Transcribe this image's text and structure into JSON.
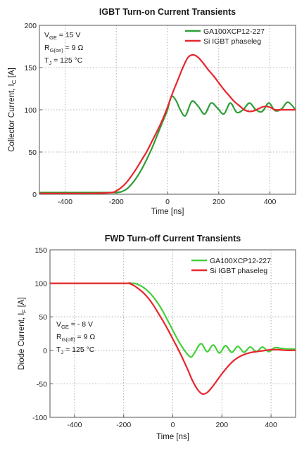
{
  "colors": {
    "green": "#2e9e36",
    "red": "#e8262d",
    "green_light": "#44d03a"
  },
  "chart_data": [
    {
      "type": "line",
      "title": "IGBT Turn-on Current Transients",
      "xlabel": "Time [ns]",
      "ylabel_main": "Collector Current, I",
      "ylabel_sub": "C",
      "ylabel_unit": " [A]",
      "xlim": [
        -500,
        500
      ],
      "ylim": [
        0,
        200
      ],
      "xticks": [
        -400,
        -200,
        0,
        200,
        400
      ],
      "yticks": [
        0,
        50,
        100,
        150,
        200
      ],
      "grid": true,
      "legend_position": "top-right",
      "annotation": [
        {
          "main": "V",
          "sub": "GE",
          "rest": " = 15 V"
        },
        {
          "main": "R",
          "sub": "G(on)",
          "rest": " = 9 Ω"
        },
        {
          "main": "T",
          "sub": "J",
          "rest": " = 125 °C"
        }
      ],
      "series": [
        {
          "name": "GA100XCP12-227",
          "color": "#2e9e36",
          "x": [
            -500,
            -300,
            -220,
            -200,
            -180,
            -160,
            -140,
            -120,
            -100,
            -80,
            -60,
            -40,
            -20,
            0,
            10,
            20,
            35,
            50,
            70,
            95,
            120,
            145,
            170,
            195,
            220,
            245,
            270,
            295,
            320,
            345,
            370,
            395,
            420,
            445,
            470,
            500
          ],
          "y": [
            2,
            2,
            2,
            2,
            3,
            6,
            12,
            20,
            30,
            42,
            55,
            70,
            85,
            100,
            112,
            116,
            110,
            100,
            93,
            110,
            104,
            95,
            108,
            102,
            95,
            108,
            97,
            100,
            108,
            100,
            98,
            108,
            99,
            101,
            109,
            100
          ]
        },
        {
          "name": "Si IGBT phaseleg",
          "color": "#e8262d",
          "x": [
            -500,
            -300,
            -220,
            -200,
            -180,
            -160,
            -140,
            -120,
            -100,
            -80,
            -60,
            -40,
            -20,
            0,
            20,
            40,
            60,
            80,
            100,
            120,
            140,
            160,
            180,
            200,
            220,
            240,
            260,
            280,
            300,
            320,
            340,
            360,
            380,
            400,
            420,
            450,
            500
          ],
          "y": [
            1,
            1,
            2,
            4,
            8,
            14,
            22,
            31,
            41,
            51,
            63,
            75,
            88,
            103,
            120,
            135,
            150,
            162,
            165,
            162,
            155,
            147,
            140,
            132,
            124,
            117,
            110,
            105,
            100,
            98,
            99,
            102,
            104,
            103,
            100,
            100,
            100
          ]
        }
      ]
    },
    {
      "type": "line",
      "title": "FWD Turn-off Current Transients",
      "xlabel": "Time [ns]",
      "ylabel_main": "Diode Current, I",
      "ylabel_sub": "F",
      "ylabel_unit": " [A]",
      "xlim": [
        -500,
        500
      ],
      "ylim": [
        -100,
        150
      ],
      "xticks": [
        -400,
        -200,
        0,
        200,
        400
      ],
      "yticks": [
        -100,
        -50,
        0,
        50,
        100,
        150
      ],
      "grid": true,
      "legend_position": "top-right",
      "annotation": [
        {
          "main": "V",
          "sub": "GE",
          "rest": " = - 8 V"
        },
        {
          "main": "R",
          "sub": "G(off)",
          "rest": " = 9 Ω"
        },
        {
          "main": "T",
          "sub": "J",
          "rest": " = 125 °C"
        }
      ],
      "series": [
        {
          "name": "GA100XCP12-227",
          "color": "#44d03a",
          "x": [
            -500,
            -200,
            -160,
            -140,
            -120,
            -100,
            -80,
            -60,
            -40,
            -20,
            0,
            20,
            40,
            60,
            75,
            90,
            115,
            140,
            165,
            190,
            215,
            240,
            265,
            290,
            315,
            340,
            365,
            390,
            415,
            440,
            470,
            500
          ],
          "y": [
            100,
            100,
            100,
            98,
            94,
            88,
            80,
            70,
            58,
            44,
            30,
            16,
            4,
            -6,
            -10,
            -3,
            10,
            -2,
            8,
            -4,
            7,
            -3,
            6,
            -3,
            5,
            -2,
            5,
            -2,
            4,
            3,
            2,
            2
          ]
        },
        {
          "name": "Si IGBT phaseleg",
          "color": "#e8262d",
          "x": [
            -500,
            -200,
            -180,
            -160,
            -140,
            -120,
            -100,
            -80,
            -60,
            -40,
            -20,
            0,
            20,
            40,
            60,
            80,
            100,
            120,
            140,
            160,
            180,
            200,
            220,
            240,
            260,
            280,
            300,
            320,
            340,
            360,
            380,
            400,
            430,
            460,
            500
          ],
          "y": [
            100,
            100,
            100,
            97,
            92,
            86,
            78,
            68,
            56,
            44,
            31,
            17,
            3,
            -12,
            -28,
            -45,
            -58,
            -65,
            -63,
            -55,
            -45,
            -35,
            -26,
            -18,
            -12,
            -8,
            -5,
            -3,
            -2,
            -1,
            0,
            1,
            1,
            0,
            0
          ]
        }
      ]
    }
  ]
}
